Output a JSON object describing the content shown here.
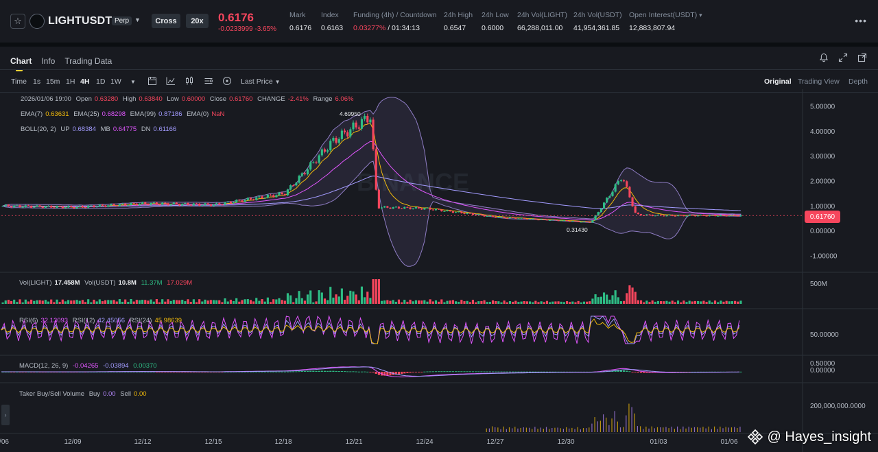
{
  "ticker": {
    "symbol": "LIGHTUSDT",
    "contract_type": "Perp",
    "margin_mode": "Cross",
    "leverage": "20x",
    "last_price": "0.6176",
    "change": "-0.0233999",
    "change_pct": "-3.65%",
    "stats": [
      {
        "label": "Mark",
        "value": "0.6176"
      },
      {
        "label": "Index",
        "value": "0.6163"
      },
      {
        "label": "Funding (4h) / Countdown",
        "value_red": "0.03277%",
        "value": " / 01:34:13"
      },
      {
        "label": "24h High",
        "value": "0.6547"
      },
      {
        "label": "24h Low",
        "value": "0.6000"
      },
      {
        "label": "24h Vol(LIGHT)",
        "value": "66,288,011.00"
      },
      {
        "label": "24h Vol(USDT)",
        "value": "41,954,361.85"
      },
      {
        "label": "Open Interest(USDT)",
        "value": "12,883,807.94"
      }
    ]
  },
  "tabs": [
    "Chart",
    "Info",
    "Trading Data"
  ],
  "toolbar": {
    "time_label": "Time",
    "intervals": [
      "1s",
      "15m",
      "1H",
      "4H",
      "1D",
      "1W"
    ],
    "active_interval": "4H",
    "price_type": "Last Price",
    "views": [
      "Original",
      "Trading View",
      "Depth"
    ],
    "active_view": "Original"
  },
  "legends": {
    "ohlc": {
      "date": "2026/01/06 19:00",
      "open_label": "Open",
      "open": "0.63280",
      "high_label": "High",
      "high": "0.63840",
      "low_label": "Low",
      "low": "0.60000",
      "close_label": "Close",
      "close": "0.61760",
      "change_label": "CHANGE",
      "change": "-2.41%",
      "range_label": "Range",
      "range": "6.06%"
    },
    "ema": {
      "ema7_label": "EMA(7)",
      "ema7": "0.63631",
      "ema25_label": "EMA(25)",
      "ema25": "0.68298",
      "ema99_label": "EMA(99)",
      "ema99": "0.87186",
      "ema0_label": "EMA(0)",
      "ema0": "NaN"
    },
    "boll": {
      "label": "BOLL(20, 2)",
      "up_label": "UP",
      "up": "0.68384",
      "mb_label": "MB",
      "mb": "0.64775",
      "dn_label": "DN",
      "dn": "0.61166"
    },
    "vol": {
      "light_label": "Vol(LIGHT)",
      "light": "17.458M",
      "usdt_label": "Vol(USDT)",
      "usdt": "10.8M",
      "ma1": "11.37M",
      "ma2": "17.029M"
    },
    "rsi": {
      "rsi6_label": "RSI(6)",
      "rsi6": "32.13093",
      "rsi12_label": "RSI(12)",
      "rsi12": "42.45056",
      "rsi24_label": "RSI(24)",
      "rsi24": "45.98639"
    },
    "macd": {
      "label": "MACD(12, 26, 9)",
      "dif": "-0.04265",
      "dea": "-0.03894",
      "hist": "0.00370"
    },
    "taker": {
      "label": "Taker Buy/Sell Volume",
      "buy_label": "Buy",
      "buy": "0.00",
      "sell_label": "Sell",
      "sell": "0.00"
    }
  },
  "price_axis": {
    "ticks": [
      "5.00000",
      "4.00000",
      "3.00000",
      "2.00000",
      "1.00000",
      "0.00000",
      "-1.00000"
    ],
    "last_price_tag": "0.61760",
    "high_marker": "4.69950",
    "low_marker": "0.31430"
  },
  "sub_axes": {
    "vol": "500M",
    "rsi": "50.00000",
    "macd": [
      "0.50000",
      "0.00000"
    ],
    "taker": "200,000,000.0000"
  },
  "time_axis": [
    "/06",
    "12/09",
    "12/12",
    "12/15",
    "12/18",
    "12/21",
    "12/24",
    "12/27",
    "12/30",
    "01/03",
    "01/06"
  ],
  "watermark_text": "@ Hayes_insight",
  "colors": {
    "up": "#2ebd85",
    "down": "#f6465d",
    "ema7": "#f0b90b",
    "ema25": "#e056fd",
    "ema99": "#a29bfe",
    "boll": "#8e7cc3"
  },
  "chart_data": {
    "type": "candlestick",
    "interval": "4H",
    "ylim": [
      -1.0,
      5.0
    ],
    "approx_close_path": [
      {
        "x": "12/06",
        "y": 1.0
      },
      {
        "x": "12/09",
        "y": 0.95
      },
      {
        "x": "12/12",
        "y": 1.1
      },
      {
        "x": "12/15",
        "y": 1.05
      },
      {
        "x": "12/18",
        "y": 1.5
      },
      {
        "x": "12/20",
        "y": 3.6
      },
      {
        "x": "12/21",
        "y": 4.6
      },
      {
        "x": "12/22",
        "y": 0.95
      },
      {
        "x": "12/24",
        "y": 0.9
      },
      {
        "x": "12/27",
        "y": 0.55
      },
      {
        "x": "12/30",
        "y": 0.35
      },
      {
        "x": "12/31",
        "y": 2.2
      },
      {
        "x": "01/01",
        "y": 0.65
      },
      {
        "x": "01/03",
        "y": 0.62
      },
      {
        "x": "01/06",
        "y": 0.6176
      }
    ],
    "high": 4.6995,
    "low": 0.3143
  }
}
